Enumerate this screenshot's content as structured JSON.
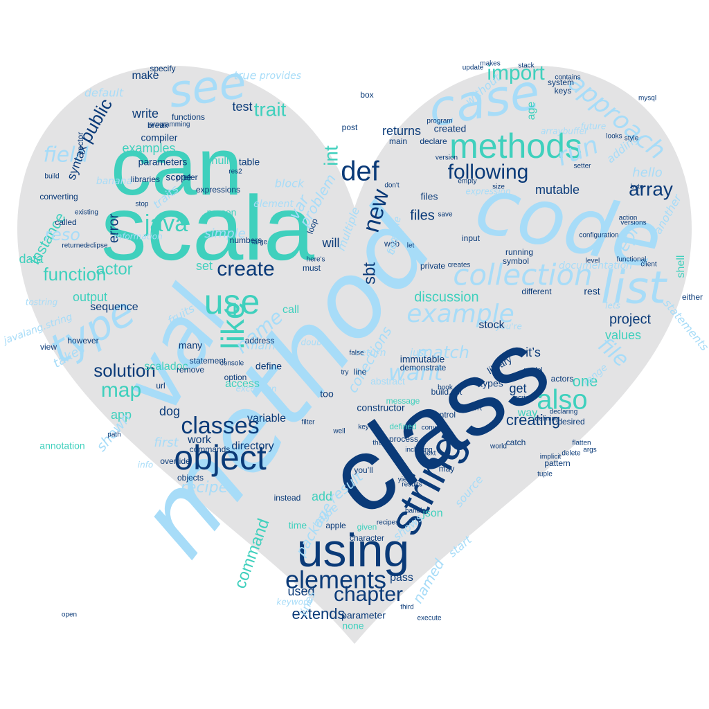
{
  "colors": {
    "background": "#ffffff",
    "heart_fill": "#e3e3e4",
    "teal": "#3fd0bd",
    "light_blue": "#a7dcf8",
    "navy": "#0a3a78",
    "mid_blue": "#1e5fa8",
    "pale_teal": "#9fe3d8"
  },
  "words": [
    {
      "text": "can",
      "color": "teal"
    },
    {
      "text": "scala",
      "color": "teal"
    },
    {
      "text": "method",
      "color": "light_blue"
    },
    {
      "text": "class",
      "color": "navy"
    },
    {
      "text": "code",
      "color": "light_blue"
    },
    {
      "text": "see",
      "color": "light_blue"
    },
    {
      "text": "case",
      "color": "light_blue"
    },
    {
      "text": "methods",
      "color": "teal"
    },
    {
      "text": "val",
      "color": "light_blue"
    },
    {
      "text": "using",
      "color": "navy"
    },
    {
      "text": "string",
      "color": "navy"
    },
    {
      "text": "object",
      "color": "navy"
    },
    {
      "text": "list",
      "color": "light_blue"
    },
    {
      "text": "use",
      "color": "teal"
    },
    {
      "text": "like",
      "color": "teal"
    },
    {
      "text": "type",
      "color": "light_blue"
    },
    {
      "text": "def",
      "color": "navy"
    },
    {
      "text": "collection",
      "color": "light_blue"
    },
    {
      "text": "following",
      "color": "navy"
    },
    {
      "text": "array",
      "color": "navy"
    },
    {
      "text": "create",
      "color": "navy"
    },
    {
      "text": "java",
      "color": "teal"
    },
    {
      "text": "also",
      "color": "teal"
    },
    {
      "text": "elements",
      "color": "navy"
    },
    {
      "text": "classes",
      "color": "navy"
    },
    {
      "text": "chapter",
      "color": "navy"
    },
    {
      "text": "function",
      "color": "teal"
    },
    {
      "text": "example",
      "color": "light_blue"
    },
    {
      "text": "import",
      "color": "teal"
    },
    {
      "text": "approach",
      "color": "light_blue"
    },
    {
      "text": "public",
      "color": "navy"
    },
    {
      "text": "solution",
      "color": "navy"
    },
    {
      "text": "map",
      "color": "teal"
    },
    {
      "text": "run",
      "color": "light_blue"
    },
    {
      "text": "new",
      "color": "navy"
    },
    {
      "text": "int",
      "color": "teal"
    },
    {
      "text": "trait",
      "color": "teal"
    },
    {
      "text": "field",
      "color": "light_blue"
    },
    {
      "text": "name",
      "color": "light_blue"
    },
    {
      "text": "actor",
      "color": "teal"
    },
    {
      "text": "sbt",
      "color": "navy"
    },
    {
      "text": "want",
      "color": "light_blue"
    },
    {
      "text": "file",
      "color": "light_blue"
    },
    {
      "text": "repl",
      "color": "light_blue"
    },
    {
      "text": "project",
      "color": "navy"
    },
    {
      "text": "creating",
      "color": "navy"
    },
    {
      "text": "one",
      "color": "teal"
    },
    {
      "text": "extends",
      "color": "navy"
    },
    {
      "text": "command",
      "color": "teal"
    },
    {
      "text": "recipe",
      "color": "light_blue"
    },
    {
      "text": "match",
      "color": "light_blue"
    },
    {
      "text": "data",
      "color": "teal"
    },
    {
      "text": "mutable",
      "color": "navy"
    },
    {
      "text": "discussion",
      "color": "teal"
    },
    {
      "text": "instance",
      "color": "teal"
    },
    {
      "text": "error",
      "color": "navy"
    },
    {
      "text": "syntax",
      "color": "navy"
    },
    {
      "text": "output",
      "color": "teal"
    },
    {
      "text": "examples",
      "color": "teal"
    },
    {
      "text": "returns",
      "color": "navy"
    },
    {
      "text": "test",
      "color": "navy"
    },
    {
      "text": "write",
      "color": "navy"
    },
    {
      "text": "dog",
      "color": "navy"
    },
    {
      "text": "files",
      "color": "navy"
    },
    {
      "text": "will",
      "color": "navy"
    },
    {
      "text": "var",
      "color": "light_blue"
    },
    {
      "text": "problem",
      "color": "light_blue"
    },
    {
      "text": "age",
      "color": "teal"
    },
    {
      "text": "hello",
      "color": "light_blue"
    },
    {
      "text": "shell",
      "color": "teal"
    },
    {
      "text": "get",
      "color": "navy"
    },
    {
      "text": "it’s",
      "color": "navy"
    },
    {
      "text": "values",
      "color": "teal"
    },
    {
      "text": "used",
      "color": "navy"
    },
    {
      "text": "add",
      "color": "teal"
    },
    {
      "text": "app",
      "color": "teal"
    },
    {
      "text": "set",
      "color": "teal"
    },
    {
      "text": "directory",
      "color": "navy"
    },
    {
      "text": "variable",
      "color": "navy"
    },
    {
      "text": "shown",
      "color": "light_blue"
    },
    {
      "text": "package",
      "color": "light_blue"
    },
    {
      "text": "result",
      "color": "light_blue"
    },
    {
      "text": "collections",
      "color": "light_blue"
    },
    {
      "text": "default",
      "color": "light_blue"
    },
    {
      "text": "make",
      "color": "navy"
    },
    {
      "text": "sequence",
      "color": "navy"
    },
    {
      "text": "work",
      "color": "navy"
    },
    {
      "text": "first",
      "color": "light_blue"
    },
    {
      "text": "define",
      "color": "navy"
    },
    {
      "text": "access",
      "color": "teal"
    },
    {
      "text": "pass",
      "color": "navy"
    },
    {
      "text": "named",
      "color": "light_blue"
    },
    {
      "text": "lines",
      "color": "light_blue"
    },
    {
      "text": "call",
      "color": "teal"
    },
    {
      "text": "types",
      "color": "navy"
    },
    {
      "text": "actors",
      "color": "navy"
    },
    {
      "text": "may",
      "color": "navy"
    },
    {
      "text": "you’ll",
      "color": "navy"
    },
    {
      "text": "json",
      "color": "teal"
    },
    {
      "text": "line",
      "color": "navy"
    },
    {
      "text": "too",
      "color": "navy"
    },
    {
      "text": "created",
      "color": "navy"
    },
    {
      "text": "parameters",
      "color": "navy"
    },
    {
      "text": "compiler",
      "color": "navy"
    },
    {
      "text": "scope",
      "color": "navy"
    },
    {
      "text": "null",
      "color": "teal"
    },
    {
      "text": "table",
      "color": "navy"
    },
    {
      "text": "person",
      "color": "teal"
    },
    {
      "text": "simple",
      "color": "light_blue"
    },
    {
      "text": "none",
      "color": "teal"
    },
    {
      "text": "parameter",
      "color": "navy"
    },
    {
      "text": "statements",
      "color": "light_blue"
    },
    {
      "text": "library",
      "color": "navy"
    },
    {
      "text": "different",
      "color": "navy"
    },
    {
      "text": "running",
      "color": "navy"
    },
    {
      "text": "system",
      "color": "navy"
    },
    {
      "text": "functions",
      "color": "navy"
    },
    {
      "text": "scaladoc",
      "color": "teal"
    },
    {
      "text": "url",
      "color": "navy"
    },
    {
      "text": "remove",
      "color": "navy"
    },
    {
      "text": "takes",
      "color": "light_blue"
    },
    {
      "text": "time",
      "color": "teal"
    },
    {
      "text": "shows",
      "color": "light_blue"
    },
    {
      "text": "value",
      "color": "light_blue"
    },
    {
      "text": "name",
      "color": "light_blue"
    },
    {
      "text": "files",
      "color": "navy"
    },
    {
      "text": "without",
      "color": "light_blue"
    },
    {
      "text": "adding",
      "color": "light_blue"
    },
    {
      "text": "another",
      "color": "light_blue"
    },
    {
      "text": "element",
      "color": "light_blue"
    },
    {
      "text": "banana",
      "color": "light_blue"
    },
    {
      "text": "traits",
      "color": "light_blue"
    },
    {
      "text": "reso",
      "color": "light_blue"
    },
    {
      "text": "build.sbt",
      "color": "navy"
    },
    {
      "text": "message",
      "color": "teal"
    },
    {
      "text": "constructor",
      "color": "navy"
    },
    {
      "text": "abstract",
      "color": "light_blue"
    },
    {
      "text": "fruits",
      "color": "light_blue"
    },
    {
      "text": "keys",
      "color": "navy"
    },
    {
      "text": "stack",
      "color": "navy"
    },
    {
      "text": "post",
      "color": "navy"
    },
    {
      "text": "box",
      "color": "navy"
    },
    {
      "text": "functional",
      "color": "navy"
    },
    {
      "text": "level",
      "color": "navy"
    },
    {
      "text": "either",
      "color": "navy"
    },
    {
      "text": "input",
      "color": "navy"
    },
    {
      "text": "private",
      "color": "navy"
    },
    {
      "text": "let",
      "color": "navy"
    },
    {
      "text": "makes",
      "color": "navy"
    },
    {
      "text": "contains",
      "color": "navy"
    },
    {
      "text": "update",
      "color": "navy"
    },
    {
      "text": "save",
      "color": "navy"
    },
    {
      "text": "creates",
      "color": "navy"
    },
    {
      "text": "symbol",
      "color": "navy"
    },
    {
      "text": "client",
      "color": "navy"
    },
    {
      "text": "catch",
      "color": "navy"
    },
    {
      "text": "desired",
      "color": "navy"
    },
    {
      "text": "way",
      "color": "teal"
    },
    {
      "text": "tuple",
      "color": "navy"
    },
    {
      "text": "control",
      "color": "navy"
    },
    {
      "text": "book",
      "color": "navy"
    },
    {
      "text": "model",
      "color": "navy"
    },
    {
      "text": "process",
      "color": "navy"
    },
    {
      "text": "immutable",
      "color": "navy"
    },
    {
      "text": "given",
      "color": "teal"
    },
    {
      "text": "apple",
      "color": "navy"
    },
    {
      "text": "character",
      "color": "navy"
    },
    {
      "text": "execute",
      "color": "navy"
    },
    {
      "text": "third",
      "color": "navy"
    },
    {
      "text": "instead",
      "color": "navy"
    },
    {
      "text": "objects",
      "color": "navy"
    },
    {
      "text": "statement",
      "color": "navy"
    },
    {
      "text": "address",
      "color": "navy"
    },
    {
      "text": "view",
      "color": "navy"
    },
    {
      "text": "however",
      "color": "navy"
    },
    {
      "text": "many",
      "color": "navy"
    },
    {
      "text": "override",
      "color": "navy"
    },
    {
      "text": "annotation",
      "color": "teal"
    },
    {
      "text": "converting",
      "color": "navy"
    },
    {
      "text": "libraries",
      "color": "navy"
    },
    {
      "text": "called",
      "color": "navy"
    },
    {
      "text": "returned",
      "color": "navy"
    },
    {
      "text": "eclipse",
      "color": "navy"
    },
    {
      "text": "build",
      "color": "navy"
    },
    {
      "text": "specify",
      "color": "navy"
    },
    {
      "text": "break",
      "color": "navy"
    },
    {
      "text": "programming",
      "color": "navy"
    },
    {
      "text": "res2",
      "color": "navy"
    },
    {
      "text": "numbers",
      "color": "navy"
    },
    {
      "text": "stop",
      "color": "navy"
    },
    {
      "text": "large",
      "color": "navy"
    },
    {
      "text": "declare",
      "color": "navy"
    },
    {
      "text": "don't",
      "color": "navy"
    },
    {
      "text": "existing",
      "color": "navy"
    },
    {
      "text": "web",
      "color": "navy"
    },
    {
      "text": "doesn't",
      "color": "navy"
    },
    {
      "text": "implicit",
      "color": "navy"
    },
    {
      "text": "pattern",
      "color": "navy"
    },
    {
      "text": "declaring",
      "color": "navy"
    },
    {
      "text": "defined",
      "color": "teal"
    },
    {
      "text": "must",
      "color": "navy"
    },
    {
      "text": "here's",
      "color": "navy"
    },
    {
      "text": "prefer",
      "color": "navy"
    },
    {
      "text": "expressions",
      "color": "navy"
    },
    {
      "text": "vector",
      "color": "navy"
    },
    {
      "text": "true",
      "color": "light_blue"
    },
    {
      "text": "provides",
      "color": "light_blue"
    },
    {
      "text": "arraybuffer",
      "color": "light_blue"
    },
    {
      "text": "expression",
      "color": "light_blue"
    },
    {
      "text": "documentation",
      "color": "light_blue"
    },
    {
      "text": "future",
      "color": "light_blue"
    },
    {
      "text": "looks",
      "color": "navy"
    },
    {
      "text": "style",
      "color": "navy"
    },
    {
      "text": "source",
      "color": "light_blue"
    },
    {
      "text": "rest",
      "color": "navy"
    },
    {
      "text": "range",
      "color": "light_blue"
    },
    {
      "text": "info",
      "color": "light_blue"
    },
    {
      "text": "commands",
      "color": "navy"
    },
    {
      "text": "multiple",
      "color": "light_blue"
    },
    {
      "text": "compile",
      "color": "light_blue"
    },
    {
      "text": "return",
      "color": "light_blue"
    },
    {
      "text": "loop",
      "color": "navy"
    },
    {
      "text": "information",
      "color": "light_blue"
    },
    {
      "text": "block",
      "color": "light_blue"
    },
    {
      "text": "lets",
      "color": "light_blue"
    },
    {
      "text": "you're",
      "color": "light_blue"
    },
    {
      "text": "just",
      "color": "light_blue"
    },
    {
      "text": "fields",
      "color": "light_blue"
    },
    {
      "text": "keyword",
      "color": "light_blue"
    },
    {
      "text": "start",
      "color": "light_blue"
    },
    {
      "text": "try",
      "color": "navy"
    },
    {
      "text": "exception",
      "color": "light_blue"
    },
    {
      "text": "javalang.string",
      "color": "light_blue"
    },
    {
      "text": "tostring",
      "color": "light_blue"
    },
    {
      "text": "filter",
      "color": "navy"
    },
    {
      "text": "console",
      "color": "navy"
    },
    {
      "text": "that's",
      "color": "navy"
    },
    {
      "text": "yield",
      "color": "navy"
    },
    {
      "text": "next",
      "color": "navy"
    },
    {
      "text": "convert",
      "color": "navy"
    },
    {
      "text": "including",
      "color": "navy"
    },
    {
      "text": "handle",
      "color": "navy"
    },
    {
      "text": "recipes",
      "color": "navy"
    },
    {
      "text": "results",
      "color": "navy"
    },
    {
      "text": "flatten",
      "color": "navy"
    },
    {
      "text": "args",
      "color": "navy"
    },
    {
      "text": "delete",
      "color": "navy"
    },
    {
      "text": "configuration",
      "color": "navy"
    },
    {
      "text": "action",
      "color": "navy"
    },
    {
      "text": "mysql",
      "color": "navy"
    },
    {
      "text": "versions",
      "color": "navy"
    },
    {
      "text": "empty",
      "color": "navy"
    },
    {
      "text": "main",
      "color": "navy"
    },
    {
      "text": "version",
      "color": "navy"
    },
    {
      "text": "program",
      "color": "navy"
    },
    {
      "text": "stock",
      "color": "navy"
    },
    {
      "text": "false",
      "color": "navy"
    },
    {
      "text": "double",
      "color": "light_blue"
    },
    {
      "text": "path",
      "color": "navy"
    },
    {
      "text": "open",
      "color": "navy"
    },
    {
      "text": "demonstrate",
      "color": "navy"
    },
    {
      "text": "setter",
      "color": "navy"
    },
    {
      "text": "world",
      "color": "navy"
    },
    {
      "text": "size",
      "color": "navy"
    },
    {
      "text": "byte",
      "color": "navy"
    },
    {
      "text": "option",
      "color": "navy"
    },
    {
      "text": "key",
      "color": "navy"
    },
    {
      "text": "well",
      "color": "navy"
    },
    {
      "text": "defining",
      "color": "navy"
    },
    {
      "text": "script",
      "color": "navy"
    }
  ]
}
